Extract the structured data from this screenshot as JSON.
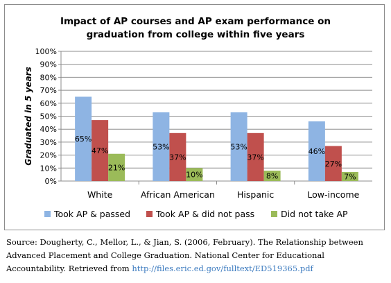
{
  "chart_data": {
    "type": "bar",
    "title_lines": [
      "Impact of AP courses and AP exam performance on",
      "graduation from college within five years"
    ],
    "ylabel": "Graduated in 5 years",
    "ylim": [
      0,
      100
    ],
    "y_ticks": [
      "0%",
      "10%",
      "20%",
      "30%",
      "40%",
      "50%",
      "60%",
      "70%",
      "80%",
      "90%",
      "100%"
    ],
    "categories": [
      "White",
      "African American",
      "Hispanic",
      "Low-income"
    ],
    "series": [
      {
        "name": "Took AP & passed",
        "color": "#8eb4e3",
        "values": [
          65,
          53,
          53,
          46
        ],
        "labels": [
          "65%",
          "53%",
          "53%",
          "46%"
        ]
      },
      {
        "name": "Took AP & did not pass",
        "color": "#c0504d",
        "values": [
          47,
          37,
          37,
          27
        ],
        "labels": [
          "47%",
          "37%",
          "37%",
          "27%"
        ]
      },
      {
        "name": "Did not take AP",
        "color": "#9bbb59",
        "values": [
          21,
          10,
          8,
          7
        ],
        "labels": [
          "21%",
          "10%",
          "8%",
          "7%"
        ]
      }
    ],
    "legend_position": "bottom",
    "grid": true
  },
  "source": {
    "text": "Source: Dougherty, C., Mellor, L., & Jian, S. (2006, February). The Relationship between Advanced Placement and College Graduation. National Center for Educational Accountability. Retrieved from ",
    "link": "http://files.eric.ed.gov/fulltext/ED519365.pdf"
  }
}
